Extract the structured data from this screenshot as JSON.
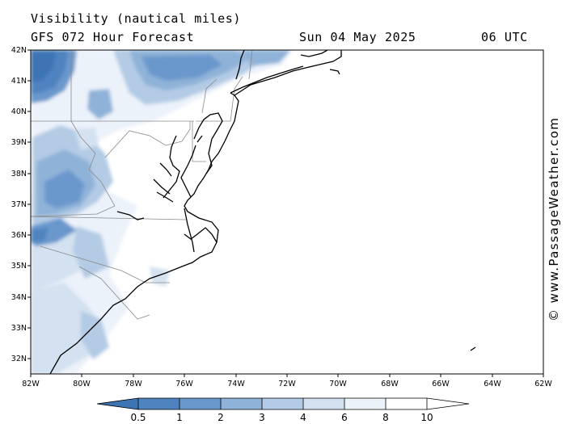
{
  "header": {
    "title": "Visibility (nautical miles)",
    "model": "GFS 072 Hour Forecast",
    "date": "Sun 04 May 2025",
    "time": "06 UTC"
  },
  "axes": {
    "lat_labels": [
      "42N",
      "41N",
      "40N",
      "39N",
      "38N",
      "37N",
      "36N",
      "35N",
      "34N",
      "33N",
      "32N"
    ],
    "lon_labels": [
      "82W",
      "80W",
      "78W",
      "76W",
      "74W",
      "72W",
      "70W",
      "68W",
      "66W",
      "64W",
      "62W"
    ],
    "lat_range": [
      31.5,
      42
    ],
    "lon_range": [
      -82,
      -62
    ]
  },
  "colorbar": {
    "labels": [
      "0.5",
      "1",
      "2",
      "3",
      "4",
      "6",
      "8",
      "10"
    ],
    "colors": [
      "#3c74b4",
      "#4f83c0",
      "#6a98cc",
      "#8fb2d8",
      "#b3cbe5",
      "#d3e1f0",
      "#ecf2fa",
      "#ffffff"
    ]
  },
  "credit": "© www.PassageWeather.com"
}
